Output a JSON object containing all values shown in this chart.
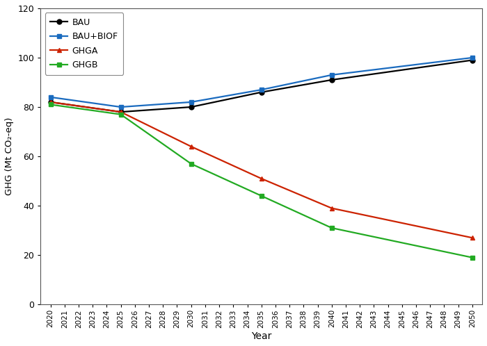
{
  "years": [
    2020,
    2025,
    2030,
    2035,
    2040,
    2050
  ],
  "BAU": [
    82,
    78,
    80,
    86,
    91,
    99
  ],
  "BAU_BIOF": [
    84,
    80,
    82,
    87,
    93,
    100
  ],
  "GHGA": [
    82,
    78,
    64,
    51,
    39,
    27
  ],
  "GHGB": [
    81,
    77,
    57,
    44,
    31,
    19
  ],
  "colors": {
    "BAU": "#000000",
    "BAU_BIOF": "#1a6bbf",
    "GHGA": "#cc2200",
    "GHGB": "#22aa22"
  },
  "markers": {
    "BAU": "o",
    "BAU_BIOF": "s",
    "GHGA": "^",
    "GHGB": "s"
  },
  "labels": {
    "BAU": "BAU",
    "BAU_BIOF": "BAU+BIOF",
    "GHGA": "GHGA",
    "GHGB": "GHGB"
  },
  "xlabel": "Year",
  "ylabel": "GHG (Mt CO₂-eq)",
  "ylim": [
    0,
    120
  ],
  "yticks": [
    0,
    20,
    40,
    60,
    80,
    100,
    120
  ],
  "xtick_years": [
    2020,
    2021,
    2022,
    2023,
    2024,
    2025,
    2026,
    2027,
    2028,
    2029,
    2030,
    2031,
    2032,
    2033,
    2034,
    2035,
    2036,
    2037,
    2038,
    2039,
    2040,
    2041,
    2042,
    2043,
    2044,
    2045,
    2046,
    2047,
    2048,
    2049,
    2050
  ],
  "background_color": "#ffffff",
  "linewidth": 1.6,
  "markersize": 5
}
